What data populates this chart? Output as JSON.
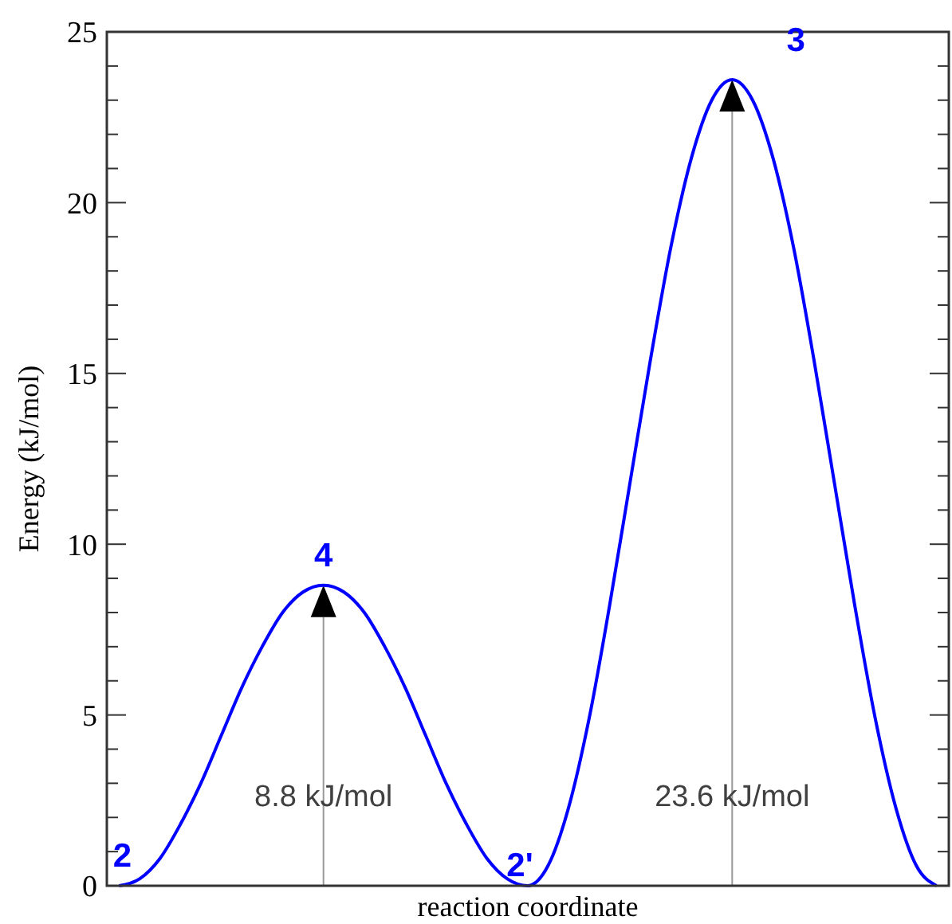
{
  "chart_data": {
    "type": "line",
    "xlabel": "reaction coordinate",
    "ylabel": "Energy (kJ/mol)",
    "categories": [
      null,
      null,
      null,
      null,
      null,
      null,
      null,
      null,
      null,
      null,
      null,
      null,
      null,
      null,
      null,
      null,
      null,
      null,
      null,
      null,
      null,
      null,
      null,
      null,
      null,
      null,
      null,
      null,
      null,
      null,
      null,
      null,
      null,
      null,
      null,
      null,
      null,
      null,
      null,
      null,
      null
    ],
    "series": [
      {
        "color": "#0000ff",
        "values": [
          0,
          0.2,
          0.8,
          1.8,
          3.0,
          4.4,
          5.8,
          7.0,
          8.0,
          8.6,
          8.8,
          8.6,
          8.0,
          7.0,
          5.8,
          4.4,
          3.0,
          1.8,
          0.8,
          0.2,
          0,
          0.6,
          2.3,
          4.9,
          8.2,
          11.8,
          15.4,
          18.7,
          21.3,
          23.0,
          23.6,
          23.0,
          21.3,
          18.7,
          15.4,
          11.8,
          8.2,
          4.9,
          2.3,
          0.6,
          0
        ]
      }
    ],
    "ylim": [
      0,
      25
    ],
    "yticks": [
      0,
      {
        "value": 1,
        "label": null
      },
      {
        "value": 2,
        "label": null
      },
      {
        "value": 3,
        "label": null
      },
      {
        "value": 4,
        "label": null
      },
      5,
      {
        "value": 6,
        "label": null
      },
      {
        "value": 7,
        "label": null
      },
      {
        "value": 8,
        "label": null
      },
      {
        "value": 9,
        "label": null
      },
      10,
      {
        "value": 11,
        "label": null
      },
      {
        "value": 12,
        "label": null
      },
      {
        "value": 13,
        "label": null
      },
      {
        "value": 14,
        "label": null
      },
      15,
      {
        "value": 16,
        "label": null
      },
      {
        "value": 17,
        "label": null
      },
      {
        "value": 18,
        "label": null
      },
      {
        "value": 19,
        "label": null
      },
      20,
      {
        "value": 21,
        "label": null
      },
      {
        "value": 22,
        "label": null
      },
      {
        "value": 23,
        "label": null
      },
      {
        "value": 24,
        "label": null
      },
      25
    ],
    "tick_labels": "y",
    "grid": false,
    "marker": "none",
    "line_style": "solid",
    "annotations": [
      "2",
      "4",
      "2'",
      "3",
      "8.8 kJ/mol",
      "23.6 kJ/mol"
    ]
  }
}
